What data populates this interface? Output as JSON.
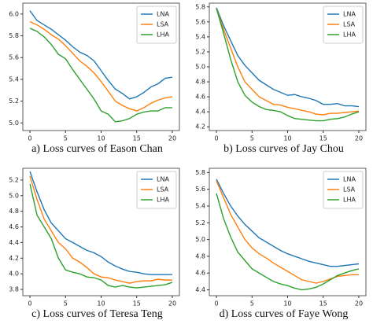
{
  "chart_data": [
    {
      "type": "line",
      "caption": "a) Loss curves of Eason Chan",
      "x": [
        0,
        1,
        2,
        3,
        4,
        5,
        6,
        7,
        8,
        9,
        10,
        11,
        12,
        13,
        14,
        15,
        16,
        17,
        18,
        19,
        20
      ],
      "xlim": [
        -1,
        21
      ],
      "xticks": [
        0,
        5,
        10,
        15,
        20
      ],
      "ylim": [
        4.93,
        6.1
      ],
      "yticks": [
        {
          "value": 5,
          "label": "5.0"
        },
        5.2,
        5.4,
        5.6,
        5.8,
        {
          "value": 6,
          "label": "6.0"
        }
      ],
      "legend": "upper right",
      "series": [
        {
          "name": "LNA",
          "color": "#1f77b4",
          "values": [
            6.03,
            5.94,
            5.9,
            5.86,
            5.81,
            5.76,
            5.7,
            5.65,
            5.62,
            5.57,
            5.48,
            5.39,
            5.31,
            5.27,
            5.22,
            5.24,
            5.28,
            5.33,
            5.36,
            5.41,
            5.42
          ]
        },
        {
          "name": "LSA",
          "color": "#ff7f0e",
          "values": [
            5.93,
            5.9,
            5.86,
            5.81,
            5.77,
            5.71,
            5.64,
            5.57,
            5.52,
            5.46,
            5.38,
            5.29,
            5.2,
            5.16,
            5.13,
            5.11,
            5.14,
            5.18,
            5.21,
            5.23,
            5.24
          ]
        },
        {
          "name": "LHA",
          "color": "#2ca02c",
          "values": [
            5.87,
            5.84,
            5.79,
            5.72,
            5.63,
            5.59,
            5.49,
            5.4,
            5.31,
            5.22,
            5.11,
            5.08,
            5.01,
            5.02,
            5.04,
            5.08,
            5.1,
            5.11,
            5.11,
            5.14,
            5.14
          ]
        }
      ]
    },
    {
      "type": "line",
      "caption": "b) Loss curves of Jay Chou",
      "x": [
        0,
        1,
        2,
        3,
        4,
        5,
        6,
        7,
        8,
        9,
        10,
        11,
        12,
        13,
        14,
        15,
        16,
        17,
        18,
        19,
        20
      ],
      "xlim": [
        -1,
        21
      ],
      "xticks": [
        0,
        5,
        10,
        15,
        20
      ],
      "ylim": [
        4.15,
        5.85
      ],
      "yticks": [
        4.2,
        4.4,
        4.6,
        4.8,
        {
          "value": 5,
          "label": "5.0"
        },
        5.2,
        5.4,
        5.6,
        5.8
      ],
      "legend": "upper right",
      "series": [
        {
          "name": "LNA",
          "color": "#1f77b4",
          "values": [
            5.79,
            5.55,
            5.35,
            5.15,
            5.02,
            4.92,
            4.82,
            4.76,
            4.7,
            4.66,
            4.62,
            4.63,
            4.6,
            4.58,
            4.55,
            4.5,
            4.5,
            4.51,
            4.48,
            4.48,
            4.47
          ]
        },
        {
          "name": "LSA",
          "color": "#ff7f0e",
          "values": [
            5.78,
            5.5,
            5.25,
            5.0,
            4.8,
            4.7,
            4.6,
            4.55,
            4.5,
            4.49,
            4.46,
            4.44,
            4.42,
            4.4,
            4.37,
            4.36,
            4.38,
            4.38,
            4.39,
            4.4,
            4.41
          ]
        },
        {
          "name": "LHA",
          "color": "#2ca02c",
          "values": [
            5.78,
            5.45,
            5.1,
            4.8,
            4.62,
            4.53,
            4.47,
            4.43,
            4.42,
            4.4,
            4.35,
            4.31,
            4.3,
            4.29,
            4.28,
            4.28,
            4.3,
            4.31,
            4.33,
            4.37,
            4.4
          ]
        }
      ]
    },
    {
      "type": "line",
      "caption": "c) Loss curves of Teresa Teng",
      "x": [
        0,
        1,
        2,
        3,
        4,
        5,
        6,
        7,
        8,
        9,
        10,
        11,
        12,
        13,
        14,
        15,
        16,
        17,
        18,
        19,
        20
      ],
      "xlim": [
        -1,
        21
      ],
      "xticks": [
        0,
        5,
        10,
        15,
        20
      ],
      "ylim": [
        3.72,
        5.35
      ],
      "yticks": [
        3.8,
        {
          "value": 4,
          "label": "4.0"
        },
        4.2,
        4.4,
        4.6,
        4.8,
        {
          "value": 5,
          "label": "5.0"
        },
        5.2
      ],
      "legend": "upper right",
      "series": [
        {
          "name": "LNA",
          "color": "#1f77b4",
          "values": [
            5.31,
            5.05,
            4.82,
            4.65,
            4.55,
            4.45,
            4.4,
            4.35,
            4.3,
            4.27,
            4.22,
            4.15,
            4.1,
            4.06,
            4.03,
            4.02,
            4.0,
            3.99,
            3.99,
            3.99,
            3.99
          ]
        },
        {
          "name": "LSA",
          "color": "#ff7f0e",
          "values": [
            5.25,
            4.95,
            4.7,
            4.55,
            4.4,
            4.32,
            4.2,
            4.15,
            4.08,
            4.0,
            3.96,
            3.95,
            3.92,
            3.9,
            3.88,
            3.9,
            3.91,
            3.91,
            3.93,
            3.92,
            3.92
          ]
        },
        {
          "name": "LHA",
          "color": "#2ca02c",
          "values": [
            5.15,
            4.75,
            4.6,
            4.45,
            4.2,
            4.05,
            4.02,
            4.0,
            3.96,
            3.95,
            3.92,
            3.85,
            3.83,
            3.85,
            3.83,
            3.82,
            3.83,
            3.84,
            3.85,
            3.86,
            3.89
          ]
        }
      ]
    },
    {
      "type": "line",
      "caption": "d) Loss curves of Faye Wong",
      "x": [
        0,
        1,
        2,
        3,
        4,
        5,
        6,
        7,
        8,
        9,
        10,
        11,
        12,
        13,
        14,
        15,
        16,
        17,
        18,
        19,
        20
      ],
      "xlim": [
        -1,
        21
      ],
      "xticks": [
        0,
        5,
        10,
        15,
        20
      ],
      "ylim": [
        4.33,
        5.85
      ],
      "yticks": [
        4.4,
        4.6,
        4.8,
        {
          "value": 5,
          "label": "5.0"
        },
        5.2,
        5.4,
        5.6,
        5.8
      ],
      "legend": "upper right",
      "series": [
        {
          "name": "LNA",
          "color": "#1f77b4",
          "values": [
            5.72,
            5.55,
            5.4,
            5.28,
            5.18,
            5.1,
            5.02,
            4.97,
            4.92,
            4.87,
            4.83,
            4.8,
            4.77,
            4.74,
            4.72,
            4.7,
            4.68,
            4.68,
            4.69,
            4.7,
            4.71
          ]
        },
        {
          "name": "LSA",
          "color": "#ff7f0e",
          "values": [
            5.7,
            5.5,
            5.3,
            5.15,
            5.0,
            4.9,
            4.83,
            4.78,
            4.72,
            4.67,
            4.62,
            4.57,
            4.52,
            4.5,
            4.48,
            4.5,
            4.53,
            4.56,
            4.57,
            4.58,
            4.58
          ]
        },
        {
          "name": "LHA",
          "color": "#2ca02c",
          "values": [
            5.55,
            5.25,
            5.03,
            4.85,
            4.75,
            4.65,
            4.6,
            4.55,
            4.5,
            4.47,
            4.45,
            4.42,
            4.4,
            4.41,
            4.43,
            4.47,
            4.52,
            4.57,
            4.6,
            4.63,
            4.65
          ]
        }
      ]
    }
  ]
}
